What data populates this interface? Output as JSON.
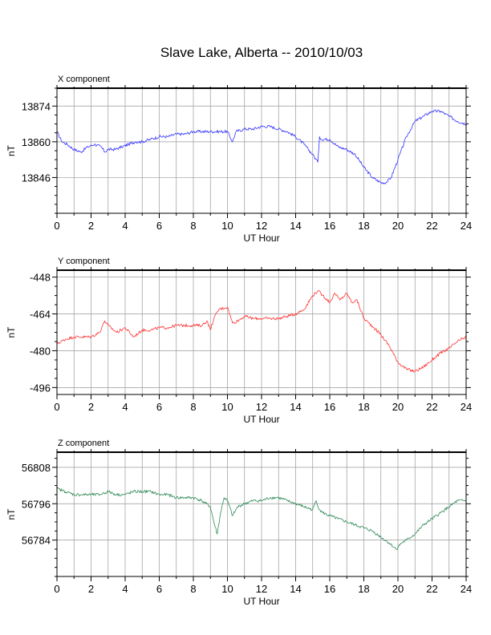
{
  "title": "Slave Lake, Alberta -- 2010/10/03",
  "chart_data": [
    {
      "type": "line",
      "title": "X component",
      "xlabel": "UT Hour",
      "ylabel": "nT",
      "xlim": [
        0,
        24
      ],
      "ylim": [
        13832,
        13881
      ],
      "xticks": [
        0,
        2,
        4,
        6,
        8,
        10,
        12,
        14,
        16,
        18,
        20,
        22,
        24
      ],
      "yticks": [
        13846,
        13860,
        13874
      ],
      "grid": true,
      "color": "#3333ff",
      "series": [
        {
          "x": [
            0,
            0.3,
            0.6,
            1.0,
            1.4,
            1.8,
            2.2,
            2.6,
            2.8,
            3.0,
            3.4,
            3.8,
            4.2,
            4.6,
            5.0,
            5.5,
            6.0,
            6.5,
            7.0,
            7.5,
            8.0,
            8.5,
            9.0,
            9.5,
            10.0,
            10.3,
            10.5,
            11.0,
            11.5,
            12.0,
            12.5,
            13.0,
            13.5,
            14.0,
            14.5,
            15.0,
            15.3,
            15.4,
            15.5,
            16.0,
            16.5,
            17.0,
            17.5,
            18.0,
            18.5,
            19.0,
            19.3,
            19.6,
            20.0,
            20.5,
            21.0,
            21.5,
            22.0,
            22.5,
            23.0,
            23.5,
            24.0
          ],
          "y": [
            13864,
            13860,
            13859,
            13857,
            13856,
            13858,
            13859,
            13858,
            13856,
            13857,
            13857,
            13858,
            13859,
            13860,
            13860,
            13861,
            13862,
            13862,
            13863,
            13863,
            13864,
            13864,
            13864,
            13864,
            13864,
            13860,
            13864,
            13865,
            13865,
            13866,
            13866,
            13865,
            13864,
            13862,
            13859,
            13855,
            13852,
            13862,
            13861,
            13861,
            13858,
            13857,
            13855,
            13850,
            13846,
            13844,
            13844,
            13846,
            13853,
            13862,
            13868,
            13870,
            13872,
            13872,
            13870,
            13868,
            13867
          ]
        }
      ]
    },
    {
      "type": "line",
      "title": "Y component",
      "xlabel": "UT Hour",
      "ylabel": "nT",
      "xlim": [
        0,
        24
      ],
      "ylim": [
        -499,
        -445
      ],
      "xticks": [
        0,
        2,
        4,
        6,
        8,
        10,
        12,
        14,
        16,
        18,
        20,
        22,
        24
      ],
      "yticks": [
        -448,
        -464,
        -480,
        -496
      ],
      "grid": true,
      "color": "#ff3333",
      "series": [
        {
          "x": [
            0,
            0.5,
            1.0,
            1.5,
            2.0,
            2.5,
            2.8,
            3.0,
            3.5,
            4.0,
            4.5,
            5.0,
            5.5,
            6.0,
            6.5,
            7.0,
            7.5,
            8.0,
            8.5,
            8.8,
            9.0,
            9.2,
            9.5,
            10.0,
            10.3,
            10.6,
            11.0,
            11.5,
            12.0,
            12.5,
            13.0,
            13.5,
            14.0,
            14.5,
            15.0,
            15.3,
            15.6,
            16.0,
            16.3,
            16.6,
            17.0,
            17.3,
            17.6,
            18.0,
            18.3,
            18.6,
            19.0,
            19.5,
            20.0,
            20.5,
            21.0,
            21.5,
            22.0,
            22.5,
            23.0,
            23.5,
            24.0
          ],
          "y": [
            -477,
            -475,
            -474,
            -474,
            -474,
            -472,
            -467,
            -469,
            -472,
            -470,
            -474,
            -471,
            -471,
            -470,
            -470,
            -469,
            -469,
            -469,
            -469,
            -467,
            -471,
            -466,
            -462,
            -461,
            -468,
            -467,
            -465,
            -466,
            -466,
            -466,
            -466,
            -465,
            -464,
            -462,
            -456,
            -454,
            -456,
            -459,
            -455,
            -458,
            -455,
            -459,
            -458,
            -466,
            -468,
            -470,
            -473,
            -478,
            -485,
            -488,
            -489,
            -487,
            -484,
            -481,
            -479,
            -476,
            -474
          ]
        }
      ]
    },
    {
      "type": "line",
      "title": "Z component",
      "xlabel": "UT Hour",
      "ylabel": "nT",
      "xlim": [
        0,
        24
      ],
      "ylim": [
        56772,
        56813
      ],
      "xticks": [
        0,
        2,
        4,
        6,
        8,
        10,
        12,
        14,
        16,
        18,
        20,
        22,
        24
      ],
      "yticks": [
        56784,
        56796,
        56808
      ],
      "grid": true,
      "color": "#2e8b57",
      "series": [
        {
          "x": [
            0,
            0.5,
            1.0,
            1.5,
            2.0,
            2.5,
            3.0,
            3.5,
            4.0,
            4.5,
            5.0,
            5.5,
            6.0,
            6.5,
            7.0,
            7.5,
            8.0,
            8.5,
            9.0,
            9.2,
            9.4,
            9.6,
            9.8,
            10.0,
            10.3,
            10.6,
            11.0,
            11.5,
            12.0,
            12.5,
            13.0,
            13.5,
            14.0,
            14.5,
            15.0,
            15.2,
            15.4,
            15.6,
            16.0,
            16.5,
            17.0,
            17.5,
            18.0,
            18.5,
            19.0,
            19.5,
            19.9,
            20.2,
            20.5,
            21.0,
            21.5,
            22.0,
            22.5,
            23.0,
            23.5,
            24.0
          ],
          "y": [
            56801,
            56800,
            56799,
            56799,
            56799,
            56799,
            56800,
            56799,
            56799,
            56800,
            56800,
            56800,
            56799,
            56799,
            56798,
            56798,
            56798,
            56797,
            56795,
            56790,
            56786,
            56793,
            56798,
            56797,
            56792,
            56795,
            56796,
            56797,
            56797,
            56798,
            56798,
            56797,
            56796,
            56795,
            56794,
            56797,
            56794,
            56793,
            56792,
            56791,
            56790,
            56789,
            56788,
            56787,
            56785,
            56783,
            56781,
            56783,
            56784,
            56786,
            56789,
            56791,
            56793,
            56795,
            56797,
            56797
          ]
        }
      ]
    }
  ]
}
